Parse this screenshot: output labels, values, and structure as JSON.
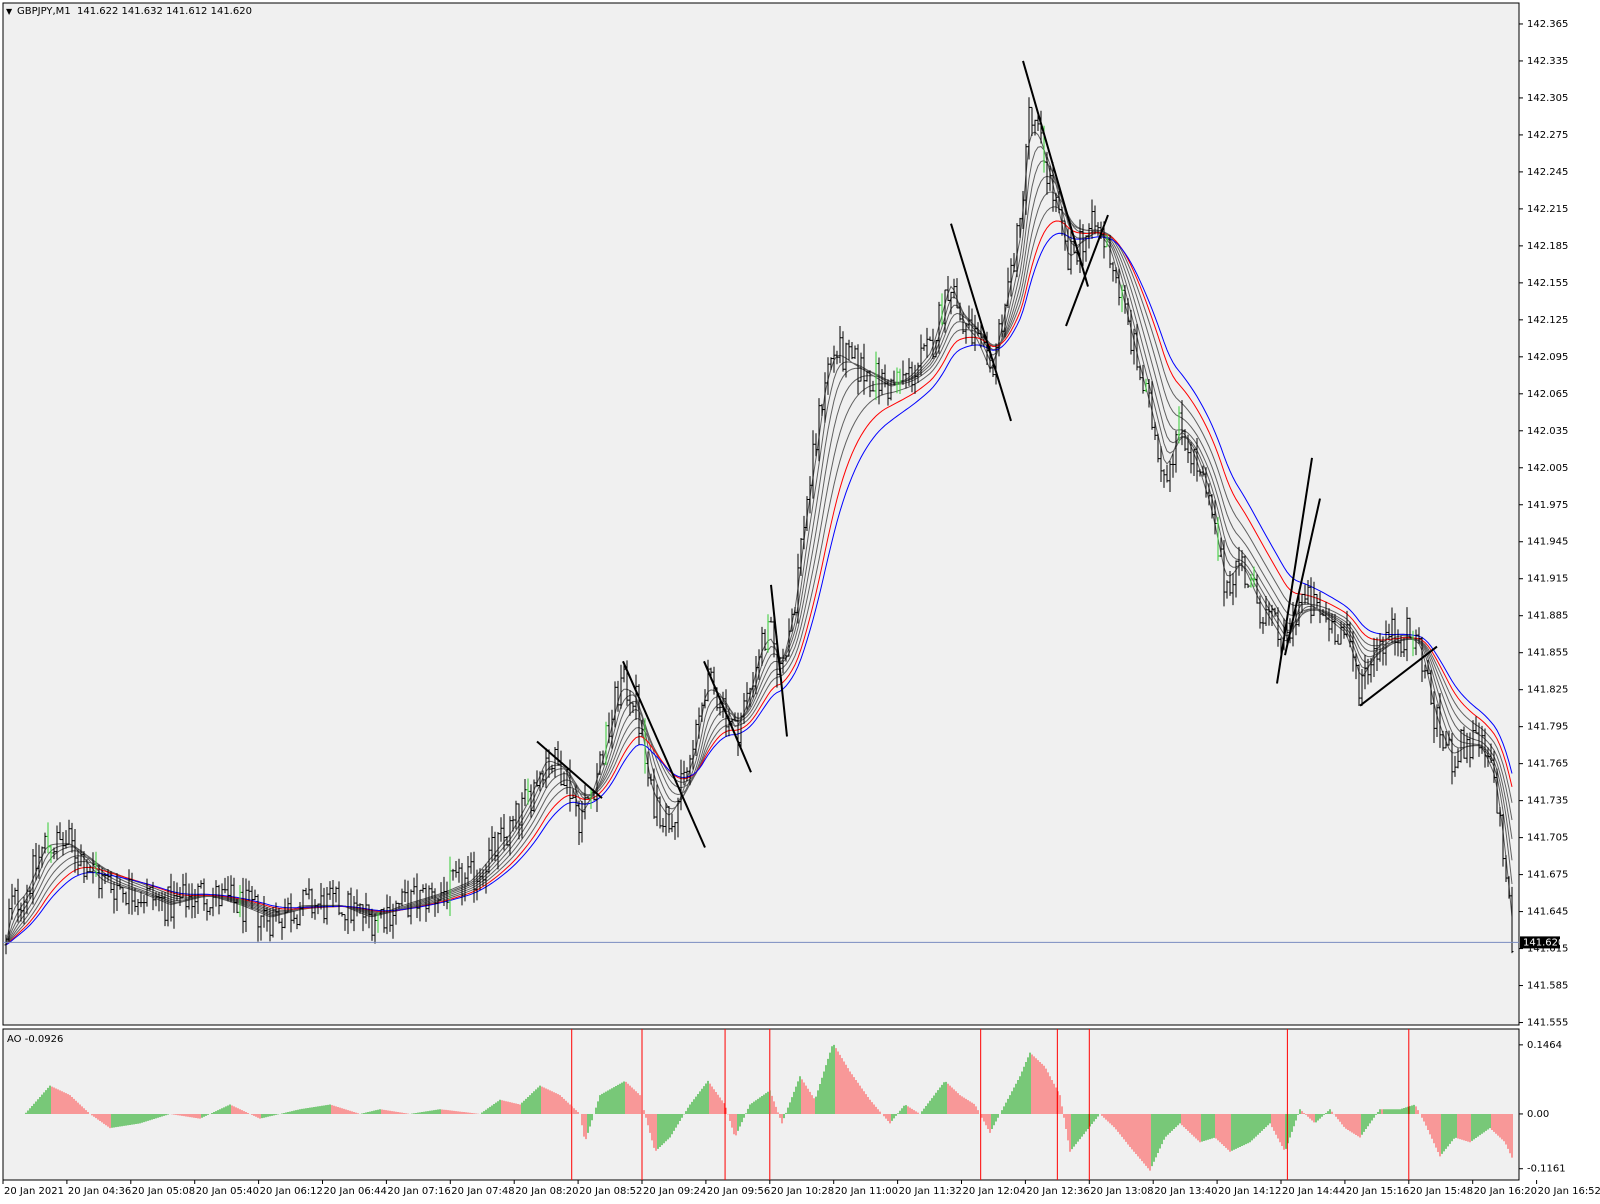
{
  "header": {
    "symbol_label": "GBPJPY,M1",
    "ohlc_text": "141.622 141.632 141.612 141.620"
  },
  "indicator": {
    "label": "AO -0.0926"
  },
  "colors": {
    "background": "#f0f0f0",
    "bar": "#000000",
    "bull_candle": "#33cc33",
    "ema_gray": "#606060",
    "ema_red": "#ff0000",
    "ema_blue": "#0000ff",
    "ao_up": "#00a000",
    "ao_down": "#ff4040",
    "vline": "#ff0000",
    "trendline": "#000000",
    "bid_line": "#7a8cc0"
  },
  "chart_data": [
    {
      "type": "line",
      "title": "GBPJPY,M1",
      "y_ticks": [
        "142.365",
        "142.335",
        "142.305",
        "142.275",
        "142.245",
        "142.215",
        "142.185",
        "142.155",
        "142.125",
        "142.095",
        "142.065",
        "142.035",
        "142.005",
        "141.975",
        "141.945",
        "141.915",
        "141.885",
        "141.855",
        "141.825",
        "141.795",
        "141.765",
        "141.735",
        "141.705",
        "141.675",
        "141.645",
        "141.615",
        "141.585",
        "141.555"
      ],
      "ylim": [
        141.553,
        142.382
      ],
      "current_price": 141.62,
      "current_price_label": "141.620",
      "x_ticks": [
        "20 Jan 2021",
        "20 Jan 04:36",
        "20 Jan 05:08",
        "20 Jan 05:40",
        "20 Jan 06:12",
        "20 Jan 06:44",
        "20 Jan 07:16",
        "20 Jan 07:48",
        "20 Jan 08:20",
        "20 Jan 08:52",
        "20 Jan 09:24",
        "20 Jan 09:56",
        "20 Jan 10:28",
        "20 Jan 11:00",
        "20 Jan 11:32",
        "20 Jan 12:04",
        "20 Jan 12:36",
        "20 Jan 13:08",
        "20 Jan 13:40",
        "20 Jan 14:12",
        "20 Jan 14:44",
        "20 Jan 15:16",
        "20 Jan 15:48",
        "20 Jan 16:20",
        "20 Jan 16:52"
      ],
      "price_path": [
        [
          0,
          141.57
        ],
        [
          10,
          141.65
        ],
        [
          25,
          141.66
        ],
        [
          45,
          141.7
        ],
        [
          70,
          141.7
        ],
        [
          100,
          141.67
        ],
        [
          140,
          141.66
        ],
        [
          170,
          141.65
        ],
        [
          200,
          141.66
        ],
        [
          240,
          141.65
        ],
        [
          270,
          141.64
        ],
        [
          300,
          141.65
        ],
        [
          340,
          141.65
        ],
        [
          370,
          141.64
        ],
        [
          400,
          141.65
        ],
        [
          440,
          141.66
        ],
        [
          470,
          141.67
        ],
        [
          490,
          141.69
        ],
        [
          510,
          141.71
        ],
        [
          530,
          141.74
        ],
        [
          545,
          141.77
        ],
        [
          565,
          141.76
        ],
        [
          580,
          141.72
        ],
        [
          590,
          141.74
        ],
        [
          605,
          141.78
        ],
        [
          620,
          141.83
        ],
        [
          635,
          141.82
        ],
        [
          650,
          141.74
        ],
        [
          668,
          141.72
        ],
        [
          680,
          141.74
        ],
        [
          695,
          141.78
        ],
        [
          705,
          141.83
        ],
        [
          720,
          141.82
        ],
        [
          735,
          141.79
        ],
        [
          748,
          141.82
        ],
        [
          760,
          141.86
        ],
        [
          770,
          141.87
        ],
        [
          780,
          141.84
        ],
        [
          795,
          141.9
        ],
        [
          805,
          141.97
        ],
        [
          815,
          142.02
        ],
        [
          825,
          142.08
        ],
        [
          835,
          142.1
        ],
        [
          850,
          142.09
        ],
        [
          870,
          142.08
        ],
        [
          890,
          142.07
        ],
        [
          910,
          142.08
        ],
        [
          930,
          142.1
        ],
        [
          950,
          142.16
        ],
        [
          962,
          142.12
        ],
        [
          975,
          142.11
        ],
        [
          990,
          142.08
        ],
        [
          1000,
          142.12
        ],
        [
          1010,
          142.16
        ],
        [
          1020,
          142.2
        ],
        [
          1028,
          142.29
        ],
        [
          1040,
          142.27
        ],
        [
          1055,
          142.22
        ],
        [
          1068,
          142.17
        ],
        [
          1080,
          142.19
        ],
        [
          1095,
          142.2
        ],
        [
          1110,
          142.18
        ],
        [
          1125,
          142.13
        ],
        [
          1140,
          142.08
        ],
        [
          1150,
          142.05
        ],
        [
          1165,
          142.0
        ],
        [
          1180,
          142.04
        ],
        [
          1195,
          142.01
        ],
        [
          1210,
          141.97
        ],
        [
          1225,
          141.91
        ],
        [
          1240,
          141.93
        ],
        [
          1255,
          141.9
        ],
        [
          1270,
          141.88
        ],
        [
          1285,
          141.86
        ],
        [
          1300,
          141.9
        ],
        [
          1315,
          141.89
        ],
        [
          1330,
          141.88
        ],
        [
          1345,
          141.87
        ],
        [
          1360,
          141.83
        ],
        [
          1375,
          141.86
        ],
        [
          1390,
          141.87
        ],
        [
          1405,
          141.87
        ],
        [
          1420,
          141.86
        ],
        [
          1435,
          141.8
        ],
        [
          1450,
          141.77
        ],
        [
          1465,
          141.78
        ],
        [
          1480,
          141.78
        ],
        [
          1495,
          141.75
        ],
        [
          1505,
          141.68
        ],
        [
          1512,
          141.62
        ]
      ],
      "trendlines": [
        [
          [
            537,
            141.783
          ],
          [
            602,
            141.737
          ]
        ],
        [
          [
            623,
            141.848
          ],
          [
            705,
            141.697
          ]
        ],
        [
          [
            704,
            141.848
          ],
          [
            751,
            141.758
          ]
        ],
        [
          [
            771,
            141.91
          ],
          [
            787,
            141.787
          ]
        ],
        [
          [
            951,
            142.203
          ],
          [
            1011,
            142.043
          ]
        ],
        [
          [
            1023,
            142.335
          ],
          [
            1088,
            142.152
          ]
        ],
        [
          [
            1066,
            142.12
          ],
          [
            1108,
            142.21
          ]
        ],
        [
          [
            1277,
            141.83
          ],
          [
            1312,
            142.013
          ]
        ],
        [
          [
            1285,
            141.853
          ],
          [
            1320,
            141.98
          ]
        ],
        [
          [
            1360,
            141.812
          ],
          [
            1437,
            141.86
          ]
        ]
      ]
    },
    {
      "type": "bar",
      "title": "AO -0.0926",
      "y_ticks": [
        "0.1464",
        "0.00",
        "-0.1161"
      ],
      "ylim": [
        -0.14,
        0.18
      ],
      "event_markers_x_ticks_index": [
        8.9,
        10.0,
        11.3,
        12.0,
        15.3,
        16.5,
        17.0,
        20.1,
        22.0
      ],
      "ao_path": [
        [
          0,
          0.0
        ],
        [
          25,
          0.0
        ],
        [
          50,
          0.06
        ],
        [
          70,
          0.04
        ],
        [
          90,
          0.0
        ],
        [
          110,
          -0.03
        ],
        [
          140,
          -0.02
        ],
        [
          170,
          0.0
        ],
        [
          200,
          -0.01
        ],
        [
          230,
          0.02
        ],
        [
          260,
          -0.01
        ],
        [
          300,
          0.01
        ],
        [
          330,
          0.02
        ],
        [
          360,
          0.0
        ],
        [
          380,
          0.01
        ],
        [
          410,
          0.0
        ],
        [
          440,
          0.01
        ],
        [
          480,
          0.0
        ],
        [
          500,
          0.03
        ],
        [
          520,
          0.02
        ],
        [
          540,
          0.06
        ],
        [
          560,
          0.04
        ],
        [
          580,
          0.0
        ],
        [
          585,
          -0.06
        ],
        [
          600,
          0.04
        ],
        [
          625,
          0.07
        ],
        [
          640,
          0.04
        ],
        [
          655,
          -0.08
        ],
        [
          670,
          -0.05
        ],
        [
          690,
          0.02
        ],
        [
          708,
          0.07
        ],
        [
          725,
          0.02
        ],
        [
          735,
          -0.05
        ],
        [
          750,
          0.02
        ],
        [
          770,
          0.05
        ],
        [
          782,
          -0.02
        ],
        [
          800,
          0.08
        ],
        [
          815,
          0.03
        ],
        [
          833,
          0.15
        ],
        [
          850,
          0.09
        ],
        [
          870,
          0.03
        ],
        [
          890,
          -0.02
        ],
        [
          905,
          0.02
        ],
        [
          920,
          0.0
        ],
        [
          945,
          0.07
        ],
        [
          960,
          0.04
        ],
        [
          975,
          0.02
        ],
        [
          990,
          -0.04
        ],
        [
          1005,
          0.02
        ],
        [
          1020,
          0.08
        ],
        [
          1030,
          0.13
        ],
        [
          1045,
          0.1
        ],
        [
          1060,
          0.04
        ],
        [
          1070,
          -0.08
        ],
        [
          1085,
          -0.04
        ],
        [
          1100,
          0.0
        ],
        [
          1115,
          -0.03
        ],
        [
          1130,
          -0.07
        ],
        [
          1150,
          -0.12
        ],
        [
          1165,
          -0.05
        ],
        [
          1180,
          -0.02
        ],
        [
          1200,
          -0.06
        ],
        [
          1215,
          -0.05
        ],
        [
          1230,
          -0.08
        ],
        [
          1250,
          -0.06
        ],
        [
          1270,
          -0.02
        ],
        [
          1285,
          -0.08
        ],
        [
          1300,
          0.01
        ],
        [
          1315,
          -0.02
        ],
        [
          1330,
          0.01
        ],
        [
          1345,
          -0.03
        ],
        [
          1360,
          -0.05
        ],
        [
          1380,
          0.01
        ],
        [
          1400,
          0.01
        ],
        [
          1415,
          0.02
        ],
        [
          1425,
          -0.02
        ],
        [
          1440,
          -0.09
        ],
        [
          1455,
          -0.05
        ],
        [
          1470,
          -0.06
        ],
        [
          1490,
          -0.03
        ],
        [
          1505,
          -0.06
        ],
        [
          1512,
          -0.0926
        ]
      ]
    }
  ]
}
